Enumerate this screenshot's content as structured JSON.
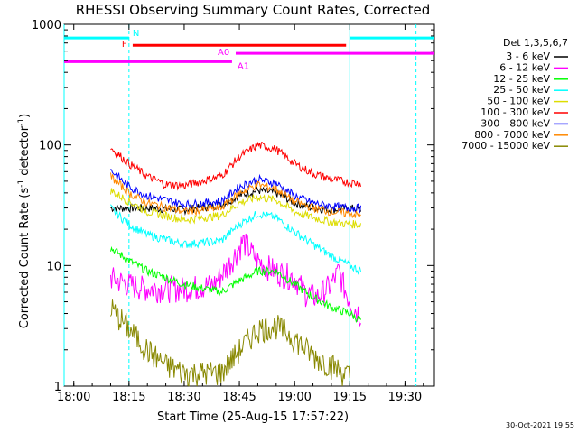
{
  "chart_data": {
    "type": "line",
    "title": "RHESSI Observing Summary Count Rates, Corrected",
    "xlabel": "Start Time (25-Aug-15 17:57:22)",
    "ylabel": "Corrected Count Rate (s⁻¹ detector⁻¹)",
    "ylabel_parts": {
      "main": "Corrected Count Rate (s",
      "sup1": "-1",
      "mid": " detector",
      "sup2": "-1",
      "end": ")"
    },
    "yscale": "log",
    "ylim": [
      1,
      1000
    ],
    "xlim": [
      "17:57:22",
      "19:38:00"
    ],
    "x_ticks": [
      "18:00",
      "18:15",
      "18:30",
      "18:45",
      "19:00",
      "19:15",
      "19:30"
    ],
    "y_ticks": [
      "1",
      "10",
      "100",
      "1000"
    ],
    "legend_title": "Det 1,3,5,6,7",
    "legend_position": "right",
    "timestamp": "30-Oct-2021 19:55",
    "series": [
      {
        "name": "3 - 6 keV",
        "color": "#000000",
        "points": [
          [
            "18:10",
            30
          ],
          [
            "18:20",
            30
          ],
          [
            "18:30",
            29
          ],
          [
            "18:40",
            32
          ],
          [
            "18:45",
            38
          ],
          [
            "18:50",
            42
          ],
          [
            "18:55",
            40
          ],
          [
            "19:00",
            33
          ],
          [
            "19:05",
            30
          ],
          [
            "19:10",
            29
          ],
          [
            "19:15",
            30
          ],
          [
            "19:18",
            29
          ]
        ]
      },
      {
        "name": "6 - 12 keV",
        "color": "#ff00ff",
        "points": [
          [
            "18:10",
            8
          ],
          [
            "18:15",
            7
          ],
          [
            "18:20",
            6.5
          ],
          [
            "18:30",
            6.5
          ],
          [
            "18:38",
            7
          ],
          [
            "18:42",
            10
          ],
          [
            "18:46",
            16
          ],
          [
            "18:50",
            11
          ],
          [
            "18:55",
            9
          ],
          [
            "19:00",
            8
          ],
          [
            "19:03",
            6
          ],
          [
            "19:06",
            5.5
          ],
          [
            "19:10",
            7
          ],
          [
            "19:12",
            9
          ],
          [
            "19:14",
            6
          ],
          [
            "19:16",
            4.5
          ],
          [
            "19:18",
            4
          ]
        ]
      },
      {
        "name": "12 - 25 keV",
        "color": "#00ff00",
        "points": [
          [
            "18:10",
            14
          ],
          [
            "18:15",
            11
          ],
          [
            "18:20",
            9
          ],
          [
            "18:30",
            7
          ],
          [
            "18:40",
            6
          ],
          [
            "18:45",
            7.5
          ],
          [
            "18:50",
            9
          ],
          [
            "18:55",
            9
          ],
          [
            "19:00",
            7
          ],
          [
            "19:05",
            5.5
          ],
          [
            "19:10",
            4.5
          ],
          [
            "19:15",
            4
          ],
          [
            "19:18",
            3.5
          ]
        ]
      },
      {
        "name": "25 - 50 keV",
        "color": "#00ffff",
        "points": [
          [
            "18:10",
            30
          ],
          [
            "18:15",
            22
          ],
          [
            "18:20",
            18
          ],
          [
            "18:30",
            15
          ],
          [
            "18:40",
            16
          ],
          [
            "18:45",
            22
          ],
          [
            "18:50",
            27
          ],
          [
            "18:55",
            25
          ],
          [
            "19:00",
            19
          ],
          [
            "19:05",
            15
          ],
          [
            "19:10",
            12
          ],
          [
            "19:15",
            10
          ],
          [
            "19:18",
            9
          ]
        ]
      },
      {
        "name": "50 - 100 keV",
        "color": "#dddd00",
        "points": [
          [
            "18:10",
            42
          ],
          [
            "18:15",
            34
          ],
          [
            "18:20",
            28
          ],
          [
            "18:30",
            24
          ],
          [
            "18:40",
            26
          ],
          [
            "18:45",
            33
          ],
          [
            "18:50",
            37
          ],
          [
            "18:55",
            35
          ],
          [
            "19:00",
            28
          ],
          [
            "19:05",
            25
          ],
          [
            "19:10",
            23
          ],
          [
            "19:15",
            22
          ],
          [
            "19:18",
            22
          ]
        ]
      },
      {
        "name": "100 - 300 keV",
        "color": "#ff0000",
        "points": [
          [
            "18:10",
            95
          ],
          [
            "18:15",
            70
          ],
          [
            "18:20",
            55
          ],
          [
            "18:25",
            47
          ],
          [
            "18:30",
            46
          ],
          [
            "18:40",
            55
          ],
          [
            "18:45",
            80
          ],
          [
            "18:50",
            100
          ],
          [
            "18:55",
            92
          ],
          [
            "19:00",
            70
          ],
          [
            "19:05",
            58
          ],
          [
            "19:10",
            52
          ],
          [
            "19:15",
            49
          ],
          [
            "19:18",
            48
          ]
        ]
      },
      {
        "name": "300 - 800 keV",
        "color": "#0000ff",
        "points": [
          [
            "18:10",
            62
          ],
          [
            "18:15",
            45
          ],
          [
            "18:20",
            38
          ],
          [
            "18:30",
            32
          ],
          [
            "18:40",
            34
          ],
          [
            "18:45",
            45
          ],
          [
            "18:50",
            52
          ],
          [
            "18:55",
            48
          ],
          [
            "19:00",
            38
          ],
          [
            "19:05",
            33
          ],
          [
            "19:10",
            31
          ],
          [
            "19:15",
            30
          ],
          [
            "19:18",
            30
          ]
        ]
      },
      {
        "name": "800 - 7000 keV",
        "color": "#ff8800",
        "points": [
          [
            "18:10",
            55
          ],
          [
            "18:15",
            40
          ],
          [
            "18:20",
            33
          ],
          [
            "18:30",
            28
          ],
          [
            "18:40",
            30
          ],
          [
            "18:45",
            40
          ],
          [
            "18:50",
            47
          ],
          [
            "18:55",
            43
          ],
          [
            "19:00",
            34
          ],
          [
            "19:05",
            30
          ],
          [
            "19:10",
            28
          ],
          [
            "19:15",
            27
          ],
          [
            "19:18",
            26
          ]
        ]
      },
      {
        "name": "7000 - 15000 keV",
        "color": "#888800",
        "points": [
          [
            "18:10",
            4.5
          ],
          [
            "18:15",
            3
          ],
          [
            "18:20",
            2
          ],
          [
            "18:25",
            1.5
          ],
          [
            "18:30",
            1.3
          ],
          [
            "18:40",
            1.3
          ],
          [
            "18:45",
            2
          ],
          [
            "18:50",
            3
          ],
          [
            "18:55",
            3.2
          ],
          [
            "19:00",
            2.5
          ],
          [
            "19:05",
            1.8
          ],
          [
            "19:10",
            1.5
          ],
          [
            "19:15",
            1.2
          ]
        ]
      }
    ],
    "status_bars": [
      {
        "label": "N",
        "color": "#00ffff",
        "spans": [
          [
            "17:57:22",
            "18:15"
          ],
          [
            "19:15",
            "19:38"
          ]
        ],
        "y_value": 770
      },
      {
        "label": "F",
        "color": "#ff0000",
        "spans": [
          [
            "18:16",
            "19:14"
          ]
        ],
        "y_value": 670
      },
      {
        "label": "A0",
        "color": "#ff00ff",
        "spans": [
          [
            "18:44",
            "19:38"
          ]
        ],
        "y_value": 575
      },
      {
        "label": "A1",
        "color": "#ff00ff",
        "spans": [
          [
            "17:57:22",
            "18:43"
          ]
        ],
        "y_value": 490
      }
    ],
    "vertical_markers": [
      {
        "time": "17:57:22",
        "color": "#00ffff",
        "style": "solid"
      },
      {
        "time": "18:15",
        "color": "#00ffff",
        "style": "dashed"
      },
      {
        "time": "19:15",
        "color": "#00ffff",
        "style": "solid"
      },
      {
        "time": "19:33",
        "color": "#00ffff",
        "style": "dashed"
      }
    ]
  }
}
